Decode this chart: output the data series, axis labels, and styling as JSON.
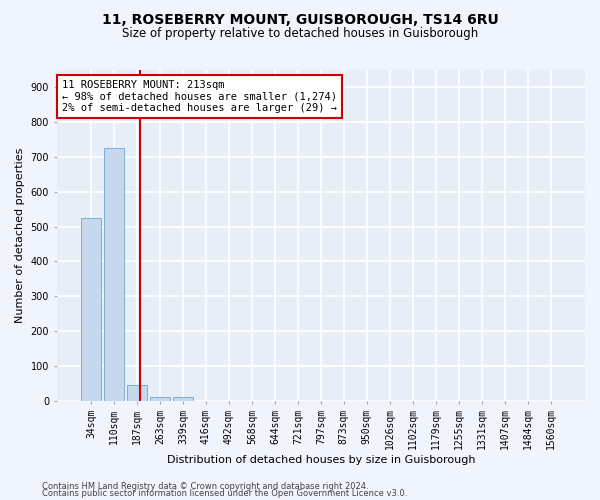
{
  "title": "11, ROSEBERRY MOUNT, GUISBOROUGH, TS14 6RU",
  "subtitle": "Size of property relative to detached houses in Guisborough",
  "xlabel": "Distribution of detached houses by size in Guisborough",
  "ylabel": "Number of detached properties",
  "footnote1": "Contains HM Land Registry data © Crown copyright and database right 2024.",
  "footnote2": "Contains public sector information licensed under the Open Government Licence v3.0.",
  "bin_labels": [
    "34sqm",
    "110sqm",
    "187sqm",
    "263sqm",
    "339sqm",
    "416sqm",
    "492sqm",
    "568sqm",
    "644sqm",
    "721sqm",
    "797sqm",
    "873sqm",
    "950sqm",
    "1026sqm",
    "1102sqm",
    "1179sqm",
    "1255sqm",
    "1331sqm",
    "1407sqm",
    "1484sqm",
    "1560sqm"
  ],
  "bar_heights": [
    525,
    725,
    45,
    10,
    10,
    0,
    0,
    0,
    0,
    0,
    0,
    0,
    0,
    0,
    0,
    0,
    0,
    0,
    0,
    0,
    0
  ],
  "bar_color": "#c5d8ee",
  "bar_edge_color": "#7bafd4",
  "property_line_x": 2.15,
  "property_line_color": "#cc0000",
  "annotation_line1": "11 ROSEBERRY MOUNT: 213sqm",
  "annotation_line2": "← 98% of detached houses are smaller (1,274)",
  "annotation_line3": "2% of semi-detached houses are larger (29) →",
  "annotation_box_color": "#cc0000",
  "ylim": [
    0,
    950
  ],
  "yticks": [
    0,
    100,
    200,
    300,
    400,
    500,
    600,
    700,
    800,
    900
  ],
  "bg_color": "#e8eef8",
  "grid_color": "#ffffff",
  "fig_bg": "#f0f4fc",
  "title_fontsize": 10,
  "subtitle_fontsize": 8.5,
  "axis_label_fontsize": 8,
  "tick_fontsize": 7,
  "annot_fontsize": 7.5
}
